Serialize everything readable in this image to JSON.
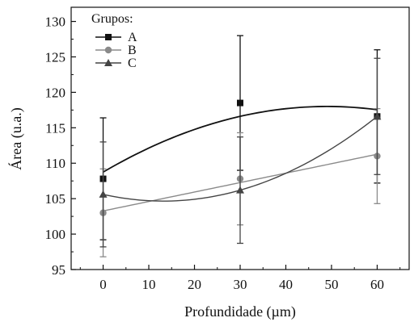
{
  "chart_data": {
    "type": "line",
    "xlabel": "Profundidade (µm)",
    "ylabel": "Área (u.a.)",
    "xlim": [
      -7,
      67
    ],
    "ylim": [
      95,
      132
    ],
    "xticks": [
      0,
      10,
      20,
      30,
      40,
      50,
      60
    ],
    "yticks": [
      95,
      100,
      105,
      110,
      115,
      120,
      125,
      130
    ],
    "grid": false,
    "legend": {
      "title": "Grupos:",
      "placement": "top-left"
    },
    "x": [
      0,
      30,
      60
    ],
    "series": [
      {
        "name": "A",
        "marker": "square",
        "color": "#111111",
        "values": [
          107.8,
          118.5,
          116.6
        ],
        "error_high": [
          116.4,
          128.0,
          126.0
        ],
        "error_low": [
          99.2,
          109.0,
          107.2
        ],
        "fit": "smooth"
      },
      {
        "name": "B",
        "marker": "circle",
        "color": "#8a8a8a",
        "values": [
          103.0,
          107.8,
          111.0
        ],
        "error_high": [
          109.2,
          114.3,
          117.7
        ],
        "error_low": [
          96.8,
          101.3,
          104.3
        ],
        "fit": "linear"
      },
      {
        "name": "C",
        "marker": "triangle",
        "color": "#444444",
        "values": [
          105.6,
          106.2,
          116.6
        ],
        "error_high": [
          113.0,
          113.7,
          124.8
        ],
        "error_low": [
          98.2,
          98.7,
          108.4
        ],
        "fit": "quadratic"
      }
    ]
  }
}
